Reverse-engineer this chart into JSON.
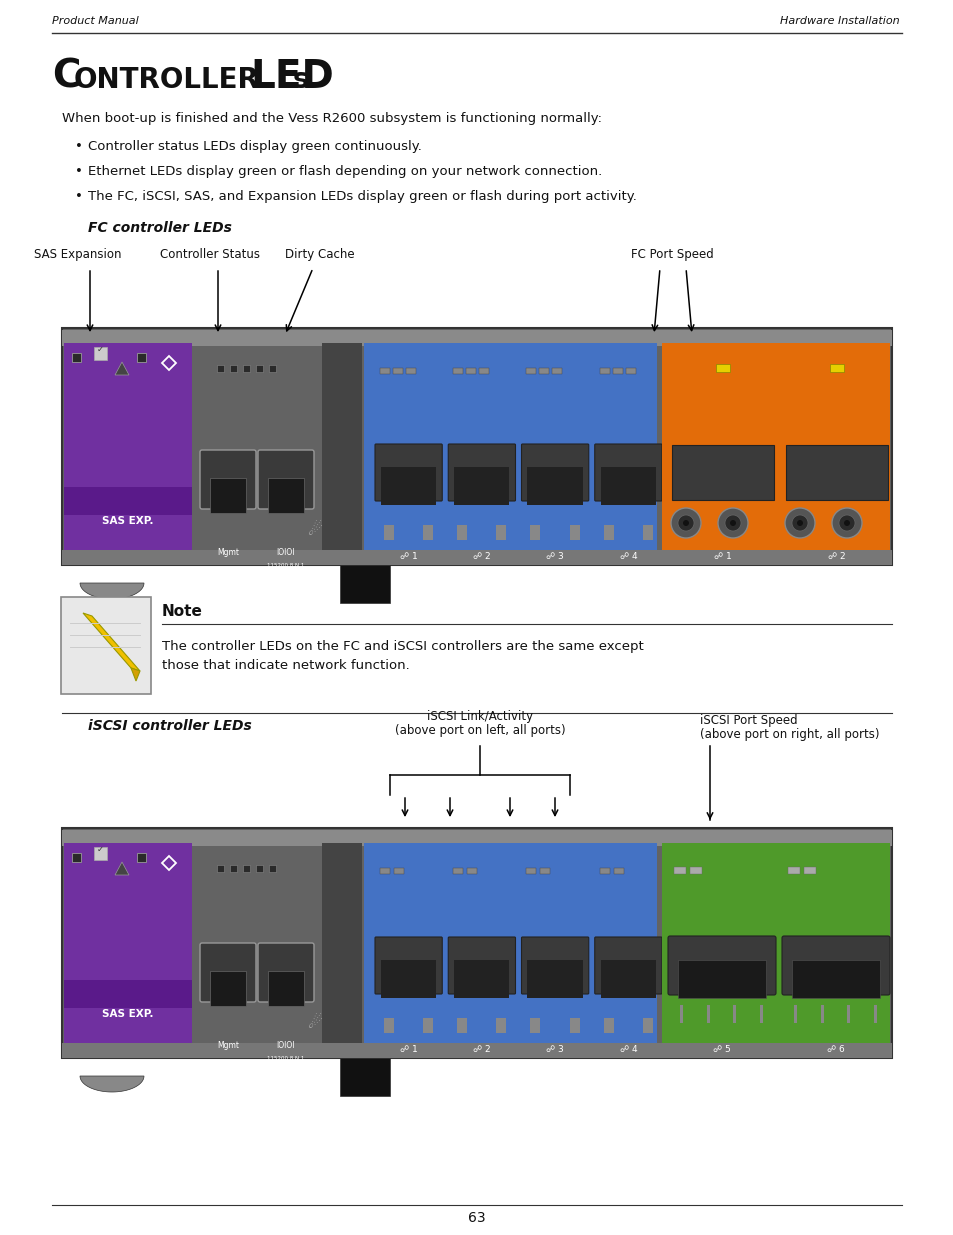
{
  "page_header_left": "Product Manual",
  "page_header_right": "Hardware Installation",
  "intro_text": "When boot-up is finished and the Vess R2600 subsystem is functioning normally:",
  "bullets": [
    "Controller status LEDs display green continuously.",
    "Ethernet LEDs display green or flash depending on your network connection.",
    "The FC, iSCSI, SAS, and Expansion LEDs display green or flash during port activity."
  ],
  "fc_section_title": "FC controller LEDs",
  "note_title": "Note",
  "note_text": "The controller LEDs on the FC and iSCSI controllers are the same except\nthose that indicate network function.",
  "iscsi_section_title": "iSCSI controller LEDs",
  "page_number": "63",
  "bg_color": "#ffffff",
  "line_color": "#222222",
  "purple_color": "#7030a0",
  "blue_color": "#4472c4",
  "orange_color": "#e36c09",
  "green_color": "#4f9a2a",
  "gray_chassis": "#636363",
  "gray_top": "#8a8a8a",
  "gray_mid": "#555555",
  "gray_eth": "#4a4a4a",
  "text_color": "#111111",
  "white": "#ffffff",
  "yellow_led": "#e6d000",
  "gray_led": "#aaaaaa"
}
